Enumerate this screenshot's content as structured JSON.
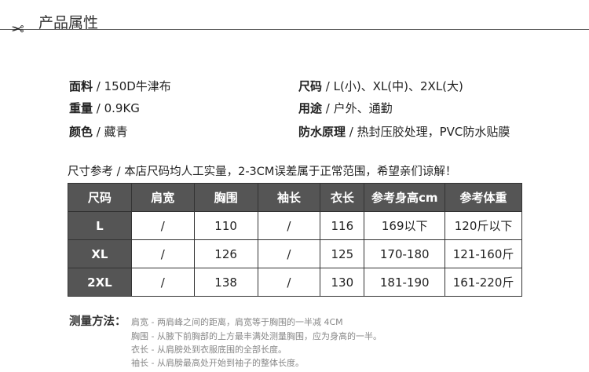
{
  "header": {
    "title": "产品属性",
    "icon": "scissors-icon"
  },
  "attributes": [
    {
      "label": "面料",
      "value": "150D牛津布"
    },
    {
      "label": "重量",
      "value": "0.9KG"
    },
    {
      "label": "颜色",
      "value": "藏青"
    },
    {
      "label": "尺码",
      "value": "L(小)、XL(中)、2XL(大)"
    },
    {
      "label": "用途",
      "value": "户外、通勤"
    },
    {
      "label": "防水原理",
      "value": "热封压胶处理，PVC防水贴膜"
    }
  ],
  "note": "尺寸参考 / 本店尺码均人工实量，2-3CM误差属于正常范围，希望亲们谅解！",
  "table": {
    "headers": [
      "尺码",
      "肩宽",
      "胸围",
      "袖长",
      "衣长",
      "参考身高cm",
      "参考体重"
    ],
    "rows": [
      [
        "L",
        "/",
        "110",
        "/",
        "116",
        "169以下",
        "120斤以下"
      ],
      [
        "XL",
        "/",
        "126",
        "/",
        "125",
        "170-180",
        "121-160斤"
      ],
      [
        "2XL",
        "/",
        "138",
        "/",
        "130",
        "181-190",
        "161-220斤"
      ]
    ]
  },
  "measurement": {
    "label": "测量方法：",
    "lines": [
      "肩宽 - 两肩峰之间的距离，肩宽等于胸围的一半减 4CM",
      "胸围 - 从腋下前胸部的上方最丰满处测量胸围，应为身高的一半。",
      "衣长 - 从肩膀处到衣服底围的全部长度。",
      "袖长 - 从肩膀最高处开始到袖子的整体长度。"
    ]
  },
  "colors": {
    "table_header": "#555555",
    "border": "#333333",
    "method_text": "#888888"
  }
}
